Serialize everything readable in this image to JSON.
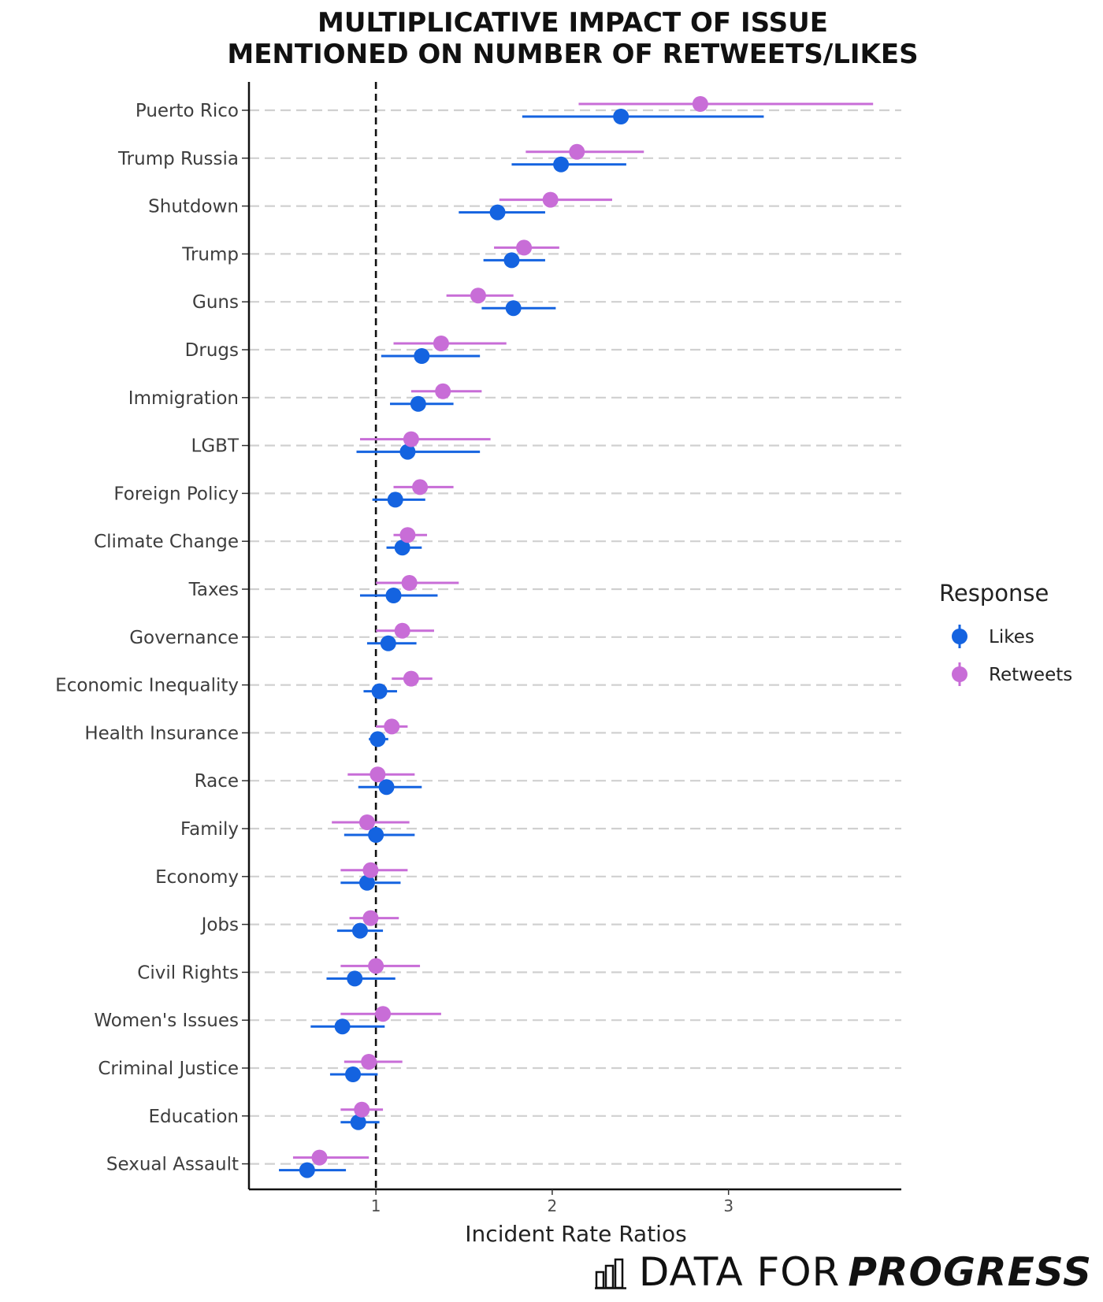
{
  "chart_data": {
    "type": "scatter",
    "title_lines": [
      "MULTIPLICATIVE IMPACT OF ISSUE",
      "MENTIONED ON NUMBER OF RETWEETS/LIKES"
    ],
    "xlabel": "Incident Rate Ratios",
    "ylabel": "",
    "xlim": [
      0.28,
      3.98
    ],
    "xticks": [
      1,
      2,
      3
    ],
    "reference_line": 1,
    "legend_title": "Response",
    "legend_position": "right",
    "categories": [
      "Puerto Rico",
      "Trump Russia",
      "Shutdown",
      "Trump",
      "Guns",
      "Drugs",
      "Immigration",
      "LGBT",
      "Foreign Policy",
      "Climate Change",
      "Taxes",
      "Governance",
      "Economic Inequality",
      "Health Insurance",
      "Race",
      "Family",
      "Economy",
      "Jobs",
      "Civil Rights",
      "Women's Issues",
      "Criminal Justice",
      "Education",
      "Sexual Assault"
    ],
    "series": [
      {
        "name": "Likes",
        "color": "#1463e0",
        "values": [
          2.39,
          2.05,
          1.69,
          1.77,
          1.78,
          1.26,
          1.24,
          1.18,
          1.11,
          1.15,
          1.1,
          1.07,
          1.02,
          1.01,
          1.06,
          1.0,
          0.95,
          0.91,
          0.88,
          0.81,
          0.87,
          0.9,
          0.61
        ],
        "lower": [
          1.83,
          1.77,
          1.47,
          1.61,
          1.6,
          1.03,
          1.08,
          0.89,
          0.98,
          1.06,
          0.91,
          0.95,
          0.93,
          0.96,
          0.9,
          0.82,
          0.8,
          0.78,
          0.72,
          0.63,
          0.74,
          0.8,
          0.45
        ],
        "upper": [
          3.2,
          2.42,
          1.96,
          1.96,
          2.02,
          1.59,
          1.44,
          1.59,
          1.28,
          1.26,
          1.35,
          1.23,
          1.12,
          1.07,
          1.26,
          1.22,
          1.14,
          1.04,
          1.11,
          1.05,
          1.01,
          1.02,
          0.83
        ]
      },
      {
        "name": "Retweets",
        "color": "#c86dd7",
        "values": [
          2.84,
          2.14,
          1.99,
          1.84,
          1.58,
          1.37,
          1.38,
          1.2,
          1.25,
          1.18,
          1.19,
          1.15,
          1.2,
          1.09,
          1.01,
          0.95,
          0.97,
          0.97,
          1.0,
          1.04,
          0.96,
          0.92,
          0.68
        ],
        "lower": [
          2.15,
          1.85,
          1.7,
          1.67,
          1.4,
          1.1,
          1.2,
          0.91,
          1.1,
          1.1,
          1.0,
          1.0,
          1.09,
          1.0,
          0.84,
          0.75,
          0.8,
          0.85,
          0.8,
          0.8,
          0.82,
          0.8,
          0.53
        ],
        "upper": [
          3.82,
          2.52,
          2.34,
          2.04,
          1.78,
          1.74,
          1.6,
          1.65,
          1.44,
          1.29,
          1.47,
          1.33,
          1.32,
          1.18,
          1.22,
          1.19,
          1.18,
          1.13,
          1.25,
          1.37,
          1.15,
          1.04,
          0.96
        ]
      }
    ]
  },
  "logo": {
    "text_light": "DATA FOR",
    "text_bold": "PROGRESS",
    "icon": "bar-chart-icon"
  }
}
